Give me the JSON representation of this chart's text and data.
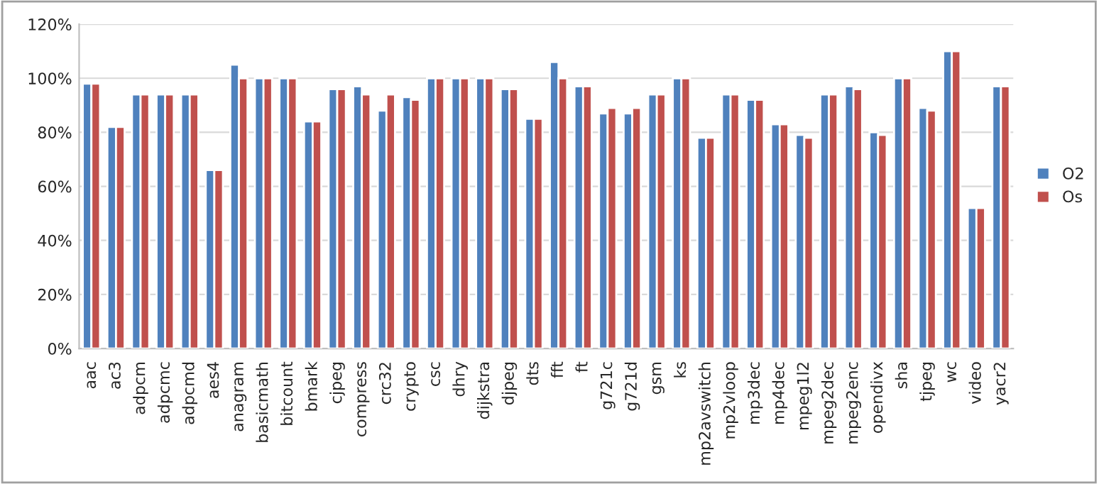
{
  "chart_data": {
    "type": "bar",
    "categories": [
      "aac",
      "ac3",
      "adpcm",
      "adpcmc",
      "adpcmd",
      "aes4",
      "anagram",
      "basicmath",
      "bitcount",
      "bmark",
      "cjpeg",
      "compress",
      "crc32",
      "crypto",
      "csc",
      "dhry",
      "dijkstra",
      "djpeg",
      "dts",
      "fft",
      "ft",
      "g721c",
      "g721d",
      "gsm",
      "ks",
      "mp2avswitch",
      "mp2vloop",
      "mp3dec",
      "mp4dec",
      "mpeg1l2",
      "mpeg2dec",
      "mpeg2enc",
      "opendivx",
      "sha",
      "tjpeg",
      "wc",
      "video",
      "yacr2"
    ],
    "series": [
      {
        "name": "O2",
        "color": "#4f81bd",
        "values": [
          98,
          82,
          94,
          94,
          94,
          66,
          105,
          100,
          100,
          84,
          96,
          97,
          88,
          93,
          100,
          100,
          100,
          96,
          85,
          106,
          97,
          87,
          87,
          94,
          100,
          78,
          94,
          92,
          83,
          79,
          94,
          97,
          80,
          100,
          89,
          110,
          52,
          97
        ]
      },
      {
        "name": "Os",
        "color": "#c0504d",
        "values": [
          98,
          82,
          94,
          94,
          94,
          66,
          100,
          100,
          100,
          84,
          96,
          94,
          94,
          92,
          100,
          100,
          100,
          96,
          85,
          100,
          97,
          89,
          89,
          94,
          100,
          78,
          94,
          92,
          83,
          78,
          94,
          96,
          79,
          100,
          88,
          110,
          52,
          97
        ]
      }
    ],
    "ylim": [
      0,
      120
    ],
    "yticks": [
      {
        "value": 0,
        "label": "0%"
      },
      {
        "value": 20,
        "label": "20%"
      },
      {
        "value": 40,
        "label": "40%"
      },
      {
        "value": 60,
        "label": "60%"
      },
      {
        "value": 80,
        "label": "80%"
      },
      {
        "value": 100,
        "label": "100%"
      },
      {
        "value": 120,
        "label": "120%"
      }
    ],
    "grid": "y",
    "legend": "right"
  }
}
